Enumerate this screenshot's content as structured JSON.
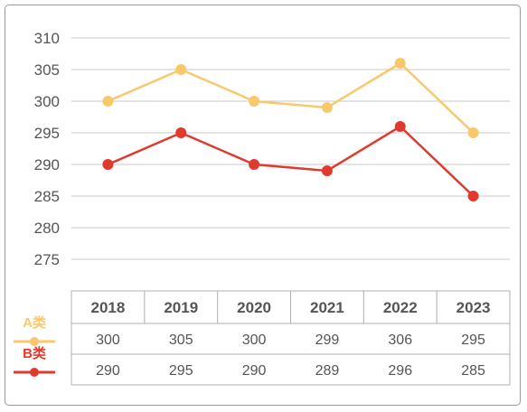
{
  "chart_data": {
    "type": "line",
    "categories": [
      "2018",
      "2019",
      "2020",
      "2021",
      "2022",
      "2023"
    ],
    "series": [
      {
        "name": "A类",
        "values": [
          300,
          305,
          300,
          299,
          306,
          295
        ],
        "color": "#f9c86b"
      },
      {
        "name": "B类",
        "values": [
          290,
          295,
          290,
          289,
          296,
          285
        ],
        "color": "#e03a2f"
      }
    ],
    "y_ticks": [
      "310",
      "305",
      "300",
      "295",
      "290",
      "285",
      "280",
      "275"
    ],
    "ylim": [
      275,
      310
    ],
    "grid": true,
    "legend": "left, alongside data table",
    "table": {
      "header": [
        "2018",
        "2019",
        "2020",
        "2021",
        "2022",
        "2023"
      ],
      "rows": [
        {
          "label": "A类",
          "cells": [
            "300",
            "305",
            "300",
            "299",
            "306",
            "295"
          ]
        },
        {
          "label": "B类",
          "cells": [
            "290",
            "295",
            "290",
            "289",
            "296",
            "285"
          ]
        }
      ]
    }
  }
}
